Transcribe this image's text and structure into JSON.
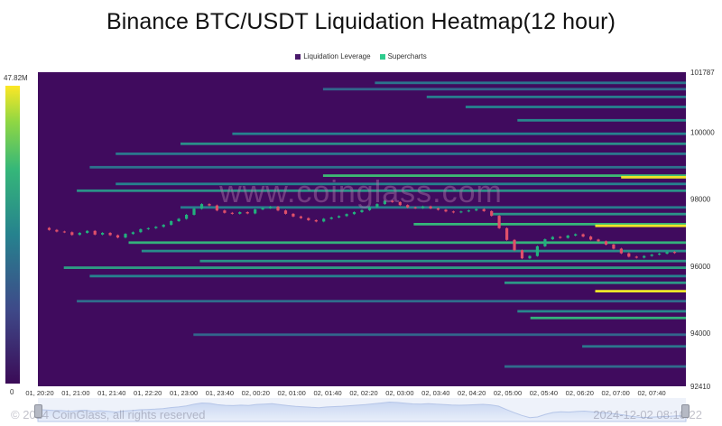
{
  "title": "Binance BTC/USDT Liquidation Heatmap(12 hour)",
  "legend": [
    {
      "label": "Liquidation Leverage",
      "color": "#4a1a6b",
      "icon": "square-swatch"
    },
    {
      "label": "Supercharts",
      "color": "#2ecc8e",
      "icon": "square-swatch"
    }
  ],
  "colorbar": {
    "max_label": "47.82M",
    "min_label": "0",
    "colors": [
      "#3b0b57",
      "#3e4a89",
      "#26828e",
      "#35b779",
      "#90d743",
      "#fde725"
    ]
  },
  "watermark": "www.coinglass.com",
  "footer": {
    "left": "© 2024 CoinGlass, all rights reserved",
    "right": "2024-12-02 08:10:22"
  },
  "chart_data": {
    "type": "heatmap",
    "title": "Binance BTC/USDT Liquidation Heatmap(12 hour)",
    "y_range": [
      92410,
      101787
    ],
    "y_ticks": [
      "101787",
      "100000",
      "98000",
      "96000",
      "94000",
      "92410"
    ],
    "x_ticks": [
      "01, 20:20",
      "01, 21:00",
      "01, 21:40",
      "01, 22:20",
      "01, 23:00",
      "01, 23:40",
      "02, 00:20",
      "02, 01:00",
      "02, 01:40",
      "02, 02:20",
      "02, 03:00",
      "02, 03:40",
      "02, 04:20",
      "02, 05:00",
      "02, 05:40",
      "02, 06:20",
      "02, 07:00",
      "02, 07:40"
    ],
    "price_series": [
      97140,
      97080,
      97030,
      97010,
      96930,
      96990,
      97050,
      96940,
      96990,
      96920,
      96850,
      96960,
      97010,
      97100,
      97130,
      97170,
      97230,
      97340,
      97410,
      97530,
      97710,
      97850,
      97810,
      97660,
      97590,
      97560,
      97610,
      97570,
      97690,
      97730,
      97770,
      97660,
      97560,
      97480,
      97430,
      97370,
      97330,
      97410,
      97450,
      97490,
      97550,
      97610,
      97670,
      97760,
      97850,
      97950,
      97910,
      97820,
      97750,
      97730,
      97780,
      97720,
      97680,
      97630,
      97600,
      97630,
      97660,
      97700,
      97640,
      97500,
      97130,
      96780,
      96470,
      96230,
      96300,
      96590,
      96800,
      96870,
      96840,
      96910,
      96950,
      96880,
      96790,
      96740,
      96640,
      96520,
      96380,
      96280,
      96250,
      96300,
      96340,
      96370,
      96420,
      96390
    ],
    "bands": [
      {
        "price": 101470,
        "t_start": 0.52,
        "intensity": 0.35
      },
      {
        "price": 101280,
        "t_start": 0.44,
        "intensity": 0.3
      },
      {
        "price": 101050,
        "t_start": 0.6,
        "intensity": 0.38
      },
      {
        "price": 100750,
        "t_start": 0.66,
        "intensity": 0.4
      },
      {
        "price": 100350,
        "t_start": 0.74,
        "intensity": 0.42
      },
      {
        "price": 99950,
        "t_start": 0.3,
        "intensity": 0.4
      },
      {
        "price": 99650,
        "t_start": 0.22,
        "intensity": 0.45
      },
      {
        "price": 99350,
        "t_start": 0.12,
        "intensity": 0.36
      },
      {
        "price": 98950,
        "t_start": 0.08,
        "intensity": 0.34
      },
      {
        "price": 98700,
        "t_start": 0.44,
        "intensity": 0.62
      },
      {
        "price": 98650,
        "t_start": 0.9,
        "intensity": 0.97
      },
      {
        "price": 98450,
        "t_start": 0.12,
        "intensity": 0.4
      },
      {
        "price": 98250,
        "t_start": 0.06,
        "intensity": 0.46
      },
      {
        "price": 97750,
        "t_start": 0.22,
        "intensity": 0.38
      },
      {
        "price": 97550,
        "t_start": 0.7,
        "intensity": 0.46
      },
      {
        "price": 97250,
        "t_start": 0.58,
        "intensity": 0.6
      },
      {
        "price": 97200,
        "t_start": 0.86,
        "intensity": 0.98
      },
      {
        "price": 96700,
        "t_start": 0.14,
        "intensity": 0.58
      },
      {
        "price": 96450,
        "t_start": 0.16,
        "intensity": 0.44
      },
      {
        "price": 96150,
        "t_start": 0.25,
        "intensity": 0.46
      },
      {
        "price": 95950,
        "t_start": 0.04,
        "intensity": 0.5
      },
      {
        "price": 95700,
        "t_start": 0.08,
        "intensity": 0.4
      },
      {
        "price": 95500,
        "t_start": 0.72,
        "intensity": 0.48
      },
      {
        "price": 95250,
        "t_start": 0.86,
        "intensity": 0.97
      },
      {
        "price": 94950,
        "t_start": 0.06,
        "intensity": 0.32
      },
      {
        "price": 94650,
        "t_start": 0.74,
        "intensity": 0.42
      },
      {
        "price": 94450,
        "t_start": 0.76,
        "intensity": 0.58
      },
      {
        "price": 93950,
        "t_start": 0.24,
        "intensity": 0.3
      },
      {
        "price": 93600,
        "t_start": 0.84,
        "intensity": 0.36
      },
      {
        "price": 93000,
        "t_start": 0.72,
        "intensity": 0.32
      }
    ]
  }
}
